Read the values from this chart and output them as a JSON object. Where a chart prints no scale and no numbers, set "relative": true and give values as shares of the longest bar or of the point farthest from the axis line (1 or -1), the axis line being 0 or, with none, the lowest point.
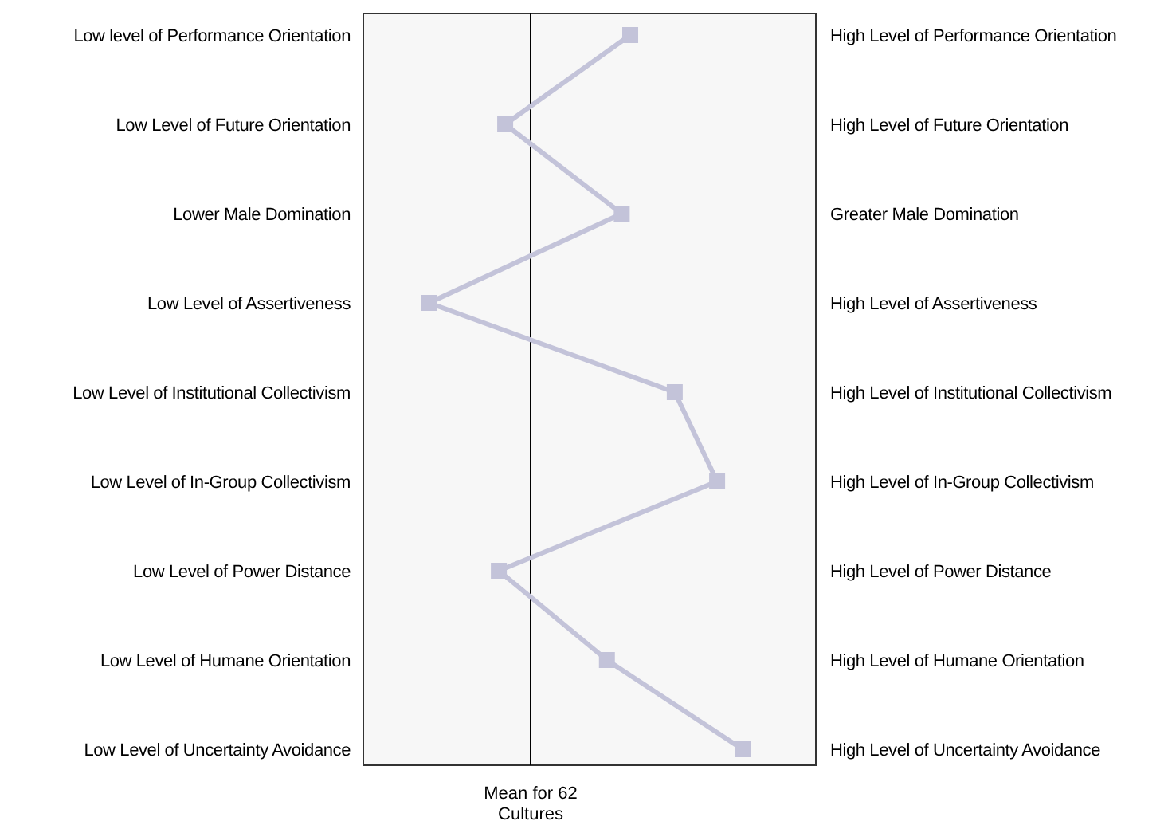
{
  "chart_data": {
    "type": "line",
    "orientation": "horizontal",
    "relative": true,
    "marker": "square",
    "line_style": "solid",
    "categories": [
      "Low level of Performance Orientation",
      "Low Level of Future Orientation",
      "Lower Male Domination",
      "Low Level of Assertiveness",
      "Low Level of Institutional Collectivism",
      "Low Level of In-Group Collectivism",
      "Low Level of Power Distance",
      "Low Level of Humane Orientation",
      "Low Level of Uncertainty Avoidance"
    ],
    "y2_categories": [
      "High Level of Performance Orientation",
      "High Level of Future Orientation",
      "Greater Male Domination",
      "High Level of Assertiveness",
      "High Level of Institutional Collectivism",
      "High Level of In-Group Collectivism",
      "High Level of Power Distance",
      "High Level of Humane Orientation",
      "High Level of Uncertainty Avoidance"
    ],
    "series": [
      {
        "color": "#c3c3d9",
        "values": [
          0.47,
          -0.12,
          0.43,
          -0.48,
          0.68,
          0.88,
          -0.15,
          0.36,
          1
        ]
      }
    ],
    "ref_lines": [
      {
        "axis": "x",
        "value": 0,
        "label": "Mean for 62 Cultures",
        "color": "#000000"
      }
    ]
  }
}
